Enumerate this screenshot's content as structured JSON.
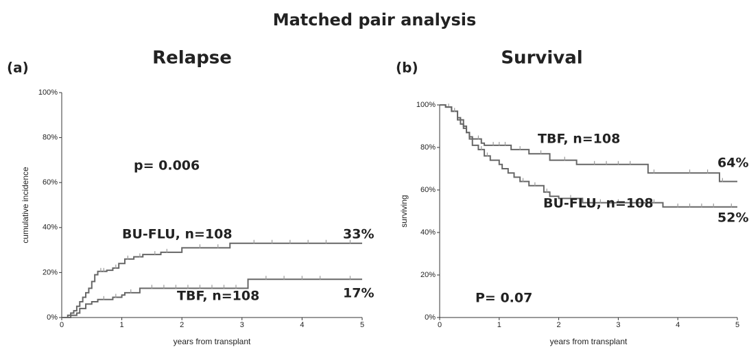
{
  "title": "Matched pair analysis",
  "chart_data": [
    {
      "type": "step",
      "panel_label": "(a)",
      "title": "Relapse",
      "xlabel": "years from transplant",
      "ylabel": "cumulative incidence",
      "xlim": [
        0,
        5
      ],
      "xticks": [
        0,
        1,
        2,
        3,
        4,
        5
      ],
      "ylim": [
        0,
        100
      ],
      "yticks": [
        {
          "value": 0,
          "label": "0%"
        },
        {
          "value": 20,
          "label": "20%"
        },
        {
          "value": 40,
          "label": "40%"
        },
        {
          "value": 60,
          "label": "60%"
        },
        {
          "value": 80,
          "label": "80%"
        },
        {
          "value": 100,
          "label": "100%"
        }
      ],
      "annotations": [
        "p= 0.006",
        "33%",
        "17%"
      ],
      "series": [
        {
          "name": "BU-FLU, n=108",
          "color": "#666666",
          "x": [
            0,
            0.1,
            0.15,
            0.2,
            0.25,
            0.3,
            0.35,
            0.4,
            0.45,
            0.5,
            0.55,
            0.6,
            0.75,
            0.85,
            0.95,
            1.05,
            1.2,
            1.35,
            1.65,
            2.0,
            2.8,
            5
          ],
          "values": [
            0,
            1,
            2,
            3,
            5,
            7,
            9,
            11,
            13,
            16,
            19,
            20.5,
            21,
            22,
            24,
            26,
            27,
            28,
            29,
            31,
            33,
            33
          ],
          "censored": [
            0.65,
            0.7,
            0.9,
            1.1,
            1.3,
            1.55,
            1.75,
            2.3,
            2.6,
            3.2,
            3.5,
            3.8,
            4.1,
            4.4,
            4.8
          ]
        },
        {
          "name": "TBF, n=108",
          "color": "#666666",
          "x": [
            0,
            0.15,
            0.25,
            0.3,
            0.4,
            0.5,
            0.6,
            0.85,
            1.0,
            1.05,
            1.3,
            3.1,
            5
          ],
          "values": [
            0,
            1,
            2,
            4,
            6,
            7,
            8,
            9,
            10,
            11,
            13,
            17,
            17
          ],
          "censored": [
            0.7,
            0.9,
            1.15,
            1.5,
            1.7,
            1.9,
            2.1,
            2.3,
            2.5,
            2.7,
            2.9,
            3.4,
            3.7,
            4.0,
            4.3,
            4.8
          ]
        }
      ]
    },
    {
      "type": "step",
      "panel_label": "(b)",
      "title": "Survival",
      "xlabel": "years from transplant",
      "ylabel": "surviving",
      "xlim": [
        0,
        5
      ],
      "xticks": [
        0,
        1,
        2,
        3,
        4,
        5
      ],
      "ylim": [
        0,
        100
      ],
      "yticks": [
        {
          "value": 0,
          "label": "0%"
        },
        {
          "value": 20,
          "label": "20%"
        },
        {
          "value": 40,
          "label": "40%"
        },
        {
          "value": 60,
          "label": "60%"
        },
        {
          "value": 80,
          "label": "80%"
        },
        {
          "value": 100,
          "label": "100%"
        }
      ],
      "annotations": [
        "P= 0.07",
        "64%",
        "52%"
      ],
      "series": [
        {
          "name": "TBF, n=108",
          "color": "#666666",
          "x": [
            0,
            0.1,
            0.2,
            0.3,
            0.35,
            0.4,
            0.45,
            0.5,
            0.55,
            0.7,
            0.75,
            1.2,
            1.5,
            1.85,
            2.3,
            3.5,
            4.7,
            5
          ],
          "values": [
            100,
            99,
            97,
            94,
            91,
            89,
            87,
            85,
            84,
            82,
            81,
            79,
            77,
            74,
            72,
            68,
            64,
            64
          ],
          "censored": [
            0.15,
            0.65,
            0.9,
            1.0,
            1.1,
            1.35,
            1.7,
            2.1,
            2.6,
            2.8,
            3.0,
            3.2,
            3.6,
            4.2,
            4.5,
            4.75
          ]
        },
        {
          "name": "BU-FLU, n=108",
          "color": "#666666",
          "x": [
            0,
            0.1,
            0.2,
            0.3,
            0.4,
            0.45,
            0.5,
            0.55,
            0.65,
            0.75,
            0.85,
            1.0,
            1.05,
            1.15,
            1.25,
            1.35,
            1.5,
            1.75,
            1.85,
            2.0,
            2.4,
            3.75,
            5
          ],
          "values": [
            100,
            99,
            97,
            93,
            90,
            87,
            84,
            81,
            79,
            76,
            74,
            72,
            70,
            68,
            66,
            64,
            62,
            59,
            57,
            56,
            54,
            52,
            52
          ],
          "censored": [
            0.25,
            0.7,
            0.8,
            1.4,
            1.6,
            1.8,
            2.2,
            2.7,
            3.0,
            3.3,
            3.6,
            4.0,
            4.2,
            4.4,
            4.6,
            4.9
          ]
        }
      ]
    }
  ]
}
